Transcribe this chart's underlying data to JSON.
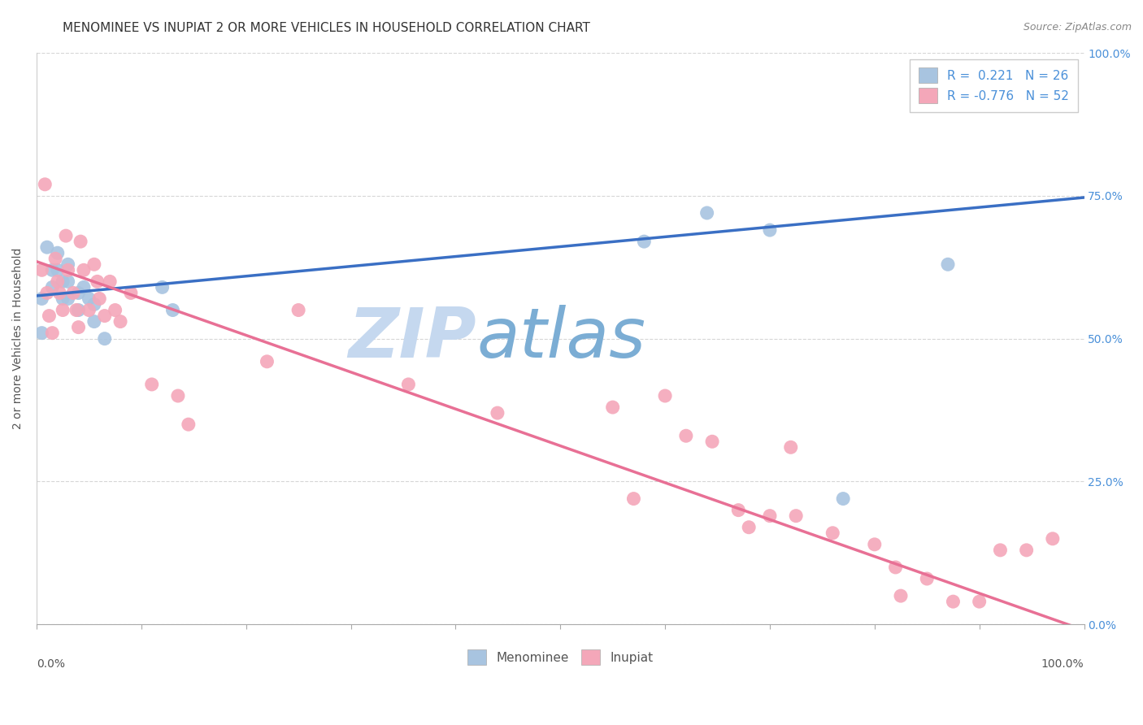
{
  "title": "MENOMINEE VS INUPIAT 2 OR MORE VEHICLES IN HOUSEHOLD CORRELATION CHART",
  "source": "Source: ZipAtlas.com",
  "ylabel_label": "2 or more Vehicles in Household",
  "xlim": [
    0,
    1
  ],
  "ylim": [
    0,
    1
  ],
  "menominee_R": 0.221,
  "menominee_N": 26,
  "inupiat_R": -0.776,
  "inupiat_N": 52,
  "menominee_color": "#a8c4e0",
  "inupiat_color": "#f4a7b9",
  "menominee_line_color": "#3a6fc4",
  "inupiat_line_color": "#e87095",
  "menominee_x": [
    0.005,
    0.005,
    0.01,
    0.015,
    0.015,
    0.02,
    0.02,
    0.025,
    0.025,
    0.03,
    0.03,
    0.03,
    0.04,
    0.04,
    0.045,
    0.05,
    0.055,
    0.055,
    0.065,
    0.12,
    0.13,
    0.58,
    0.64,
    0.7,
    0.77,
    0.87
  ],
  "menominee_y": [
    0.57,
    0.51,
    0.66,
    0.62,
    0.59,
    0.65,
    0.62,
    0.6,
    0.57,
    0.63,
    0.6,
    0.57,
    0.58,
    0.55,
    0.59,
    0.57,
    0.56,
    0.53,
    0.5,
    0.59,
    0.55,
    0.67,
    0.72,
    0.69,
    0.22,
    0.63
  ],
  "inupiat_x": [
    0.005,
    0.008,
    0.01,
    0.012,
    0.015,
    0.018,
    0.02,
    0.022,
    0.025,
    0.028,
    0.03,
    0.035,
    0.038,
    0.04,
    0.042,
    0.045,
    0.05,
    0.055,
    0.058,
    0.06,
    0.065,
    0.07,
    0.075,
    0.08,
    0.09,
    0.11,
    0.135,
    0.145,
    0.22,
    0.25,
    0.355,
    0.44,
    0.55,
    0.57,
    0.6,
    0.62,
    0.645,
    0.67,
    0.68,
    0.7,
    0.72,
    0.725,
    0.76,
    0.8,
    0.82,
    0.825,
    0.85,
    0.875,
    0.9,
    0.92,
    0.945,
    0.97
  ],
  "inupiat_y": [
    0.62,
    0.77,
    0.58,
    0.54,
    0.51,
    0.64,
    0.6,
    0.58,
    0.55,
    0.68,
    0.62,
    0.58,
    0.55,
    0.52,
    0.67,
    0.62,
    0.55,
    0.63,
    0.6,
    0.57,
    0.54,
    0.6,
    0.55,
    0.53,
    0.58,
    0.42,
    0.4,
    0.35,
    0.46,
    0.55,
    0.42,
    0.37,
    0.38,
    0.22,
    0.4,
    0.33,
    0.32,
    0.2,
    0.17,
    0.19,
    0.31,
    0.19,
    0.16,
    0.14,
    0.1,
    0.05,
    0.08,
    0.04,
    0.04,
    0.13,
    0.13,
    0.15
  ],
  "menominee_line_y_start": 0.575,
  "menominee_line_y_end": 0.747,
  "inupiat_line_y_start": 0.635,
  "inupiat_line_y_end": -0.01,
  "watermark_zip": "ZIP",
  "watermark_atlas": "atlas",
  "watermark_zip_color": "#c5d8ef",
  "watermark_atlas_color": "#7badd4",
  "background_color": "#ffffff",
  "grid_color": "#cccccc",
  "title_fontsize": 11,
  "axis_label_fontsize": 10,
  "tick_fontsize": 10,
  "legend_fontsize": 11
}
